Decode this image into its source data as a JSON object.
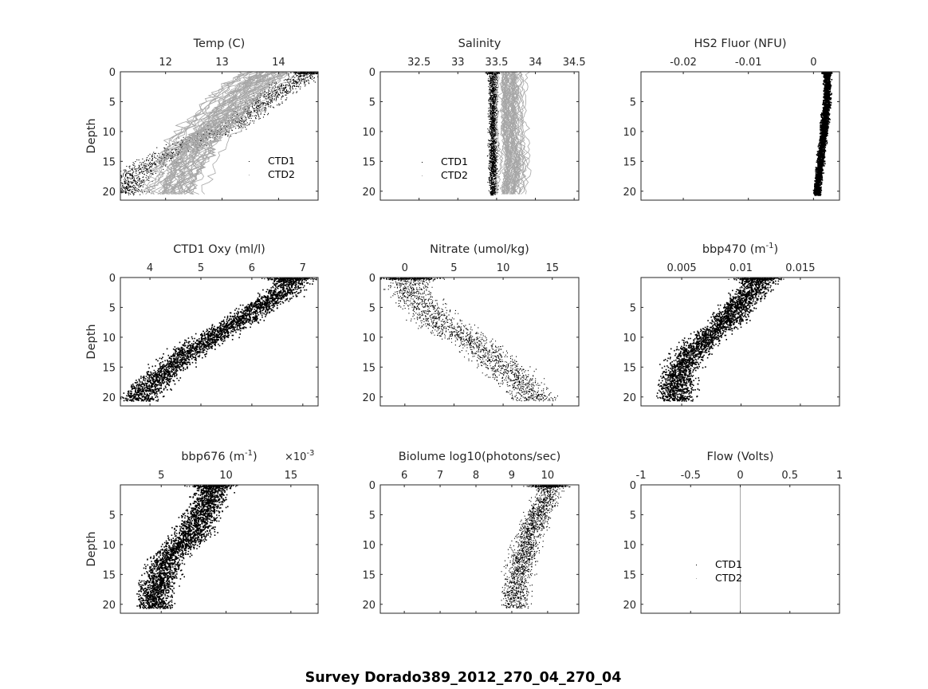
{
  "figure": {
    "suptitle": "Survey Dorado389_2012_270_04_270_04",
    "colors": {
      "ctd1": "#000000",
      "ctd2": "#a6a6a6",
      "axes": "#262626"
    }
  },
  "chart_data": [
    {
      "type": "scatter",
      "title": "Temp (C)",
      "ylabel": "Depth",
      "xlim": [
        11.2,
        14.7
      ],
      "ylim": [
        21.5,
        0
      ],
      "y_reversed": true,
      "xticks": [
        12,
        13,
        14
      ],
      "xtick_labels": [
        "12",
        "13",
        "14"
      ],
      "yticks": [
        0,
        5,
        10,
        15,
        20
      ],
      "ytick_labels": [
        "0",
        "5",
        "10",
        "15",
        "20"
      ],
      "legend": {
        "entries": [
          "CTD1",
          "CTD2"
        ],
        "placement": "lower-right"
      },
      "series": [
        {
          "name": "CTD1",
          "color": "#000000",
          "style": "dots",
          "profile": [
            [
              14.6,
              0
            ],
            [
              14.0,
              3
            ],
            [
              13.7,
              5
            ],
            [
              13.3,
              8
            ],
            [
              12.9,
              10
            ],
            [
              12.4,
              12
            ],
            [
              12.0,
              14
            ],
            [
              11.6,
              16
            ],
            [
              11.4,
              18
            ],
            [
              11.3,
              20
            ]
          ],
          "spread": 0.5
        },
        {
          "name": "CTD2",
          "color": "#a6a6a6",
          "style": "lines",
          "profile": [
            [
              13.8,
              0
            ],
            [
              13.4,
              3
            ],
            [
              13.2,
              5
            ],
            [
              12.9,
              8
            ],
            [
              12.7,
              10
            ],
            [
              12.5,
              12
            ],
            [
              12.4,
              14
            ],
            [
              12.3,
              16
            ],
            [
              12.2,
              18
            ],
            [
              12.1,
              20
            ]
          ],
          "spread": 0.7
        }
      ]
    },
    {
      "type": "scatter",
      "title": "Salinity",
      "ylabel": "",
      "xlim": [
        32.0,
        34.56
      ],
      "ylim": [
        21.5,
        0
      ],
      "y_reversed": true,
      "xticks": [
        32.5,
        33,
        33.5,
        34,
        34.5
      ],
      "xtick_labels": [
        "32.5",
        "33",
        "33.5",
        "34",
        "34.5"
      ],
      "yticks": [
        0,
        5,
        10,
        15,
        20
      ],
      "ytick_labels": [
        "0",
        "5",
        "10",
        "15",
        "20"
      ],
      "legend": {
        "entries": [
          "CTD1",
          "CTD2"
        ],
        "placement": "lower-left"
      },
      "series": [
        {
          "name": "CTD1",
          "color": "#000000",
          "style": "dots",
          "profile": [
            [
              33.45,
              2
            ],
            [
              33.45,
              5
            ],
            [
              33.45,
              10
            ],
            [
              33.45,
              15
            ],
            [
              33.45,
              20
            ]
          ],
          "spread": 0.08
        },
        {
          "name": "CTD2",
          "color": "#a6a6a6",
          "style": "lines",
          "profile": [
            [
              33.7,
              2
            ],
            [
              33.7,
              5
            ],
            [
              33.7,
              10
            ],
            [
              33.75,
              15
            ],
            [
              33.7,
              20
            ]
          ],
          "spread": 0.25
        }
      ]
    },
    {
      "type": "scatter",
      "title": "HS2 Fluor (NFU)",
      "ylabel": "",
      "xlim": [
        -0.0265,
        0.004
      ],
      "ylim": [
        21.5,
        0
      ],
      "y_reversed": true,
      "xticks": [
        -0.02,
        -0.01,
        0
      ],
      "xtick_labels": [
        "-0.02",
        "-0.01",
        "0"
      ],
      "yticks": [
        5,
        10,
        15,
        20
      ],
      "ytick_labels": [
        "5",
        "10",
        "15",
        "20"
      ],
      "series": [
        {
          "name": "CTD1",
          "color": "#000000",
          "style": "dense",
          "profile": [
            [
              0.002,
              0
            ],
            [
              0.002,
              5
            ],
            [
              0.0015,
              10
            ],
            [
              0.001,
              15
            ],
            [
              0.0005,
              20
            ]
          ],
          "spread": 0.0008
        }
      ]
    },
    {
      "type": "scatter",
      "title": "CTD1 Oxy (ml/l)",
      "ylabel": "Depth",
      "xlim": [
        3.42,
        7.3
      ],
      "ylim": [
        21.5,
        0
      ],
      "y_reversed": true,
      "xticks": [
        4,
        5,
        6,
        7
      ],
      "xtick_labels": [
        "4",
        "5",
        "6",
        "7"
      ],
      "yticks": [
        0,
        5,
        10,
        15,
        20
      ],
      "ytick_labels": [
        "0",
        "5",
        "10",
        "15",
        "20"
      ],
      "series": [
        {
          "name": "CTD1",
          "color": "#000000",
          "style": "dense",
          "profile": [
            [
              6.8,
              0
            ],
            [
              6.5,
              3
            ],
            [
              6.1,
              5
            ],
            [
              5.6,
              8
            ],
            [
              5.2,
              10
            ],
            [
              4.8,
              12
            ],
            [
              4.4,
              15
            ],
            [
              4.0,
              18
            ],
            [
              3.8,
              20
            ]
          ],
          "spread": 0.55
        }
      ]
    },
    {
      "type": "scatter",
      "title": "Nitrate (umol/kg)",
      "ylabel": "",
      "xlim": [
        -2.5,
        17.7
      ],
      "ylim": [
        21.5,
        0
      ],
      "y_reversed": true,
      "xticks": [
        0,
        5,
        10,
        15
      ],
      "xtick_labels": [
        "0",
        "5",
        "10",
        "15"
      ],
      "yticks": [
        0,
        5,
        10,
        15,
        20
      ],
      "ytick_labels": [
        "0",
        "5",
        "10",
        "15",
        "20"
      ],
      "series": [
        {
          "name": "CTD1",
          "color": "#000000",
          "style": "dots",
          "profile": [
            [
              0.5,
              0
            ],
            [
              0.5,
              3
            ],
            [
              2,
              5
            ],
            [
              4,
              8
            ],
            [
              6,
              10
            ],
            [
              8,
              12
            ],
            [
              10,
              15
            ],
            [
              12,
              18
            ],
            [
              13,
              20
            ]
          ],
          "spread": 3.5
        }
      ]
    },
    {
      "type": "scatter",
      "title": "bbp470 (m^-1)",
      "ylabel": "",
      "xlim": [
        0.00157,
        0.0183
      ],
      "ylim": [
        21.5,
        0
      ],
      "y_reversed": true,
      "xticks": [
        0.005,
        0.01,
        0.015
      ],
      "xtick_labels": [
        "0.005",
        "0.01",
        "0.015"
      ],
      "yticks": [
        5,
        10,
        15,
        20
      ],
      "ytick_labels": [
        "5",
        "10",
        "15",
        "20"
      ],
      "series": [
        {
          "name": "CTD1",
          "color": "#000000",
          "style": "dense",
          "profile": [
            [
              0.0115,
              0
            ],
            [
              0.0105,
              3
            ],
            [
              0.0095,
              5
            ],
            [
              0.0085,
              8
            ],
            [
              0.007,
              10
            ],
            [
              0.006,
              12
            ],
            [
              0.005,
              15
            ],
            [
              0.0045,
              18
            ],
            [
              0.0045,
              20
            ]
          ],
          "spread": 0.0022
        }
      ]
    },
    {
      "type": "scatter",
      "title": "bbp676 (m^-1)",
      "ylabel": "Depth",
      "xlim": [
        1.85,
        17.1
      ],
      "x_multiplier": "×10^-3",
      "ylim": [
        21.5,
        0
      ],
      "y_reversed": true,
      "xticks": [
        5,
        10,
        15
      ],
      "xtick_labels": [
        "5",
        "10",
        "15"
      ],
      "yticks": [
        5,
        10,
        15,
        20
      ],
      "ytick_labels": [
        "5",
        "10",
        "15",
        "20"
      ],
      "series": [
        {
          "name": "CTD1",
          "color": "#000000",
          "style": "dense",
          "profile": [
            [
              9,
              0
            ],
            [
              8.5,
              3
            ],
            [
              8,
              5
            ],
            [
              7.5,
              8
            ],
            [
              6.5,
              10
            ],
            [
              5.5,
              12
            ],
            [
              5,
              15
            ],
            [
              4.5,
              18
            ],
            [
              4.5,
              20
            ]
          ],
          "spread": 2.0
        }
      ]
    },
    {
      "type": "scatter",
      "title": "Biolume log10(photons/sec)",
      "ylabel": "",
      "xlim": [
        5.33,
        10.87
      ],
      "ylim": [
        21.5,
        0
      ],
      "y_reversed": true,
      "xticks": [
        6,
        7,
        8,
        9,
        10
      ],
      "xtick_labels": [
        "6",
        "7",
        "8",
        "9",
        "10"
      ],
      "yticks": [
        0,
        5,
        10,
        15,
        20
      ],
      "ytick_labels": [
        "0",
        "5",
        "10",
        "15",
        "20"
      ],
      "series": [
        {
          "name": "CTD1",
          "color": "#000000",
          "style": "dots",
          "profile": [
            [
              10.0,
              0
            ],
            [
              9.9,
              3
            ],
            [
              9.7,
              5
            ],
            [
              9.5,
              8
            ],
            [
              9.4,
              10
            ],
            [
              9.3,
              12
            ],
            [
              9.2,
              15
            ],
            [
              9.1,
              18
            ],
            [
              9.1,
              20
            ]
          ],
          "spread": 0.55
        }
      ]
    },
    {
      "type": "line",
      "title": "Flow (Volts)",
      "ylabel": "",
      "xlim": [
        -1,
        1
      ],
      "ylim": [
        21.5,
        0
      ],
      "y_reversed": true,
      "xticks": [
        -1,
        -0.5,
        0,
        0.5,
        1
      ],
      "xtick_labels": [
        "-1",
        "-0.5",
        "0",
        "0.5",
        "1"
      ],
      "yticks": [
        0,
        5,
        10,
        15,
        20
      ],
      "ytick_labels": [
        "0",
        "5",
        "10",
        "15",
        "20"
      ],
      "legend": {
        "entries": [
          "CTD1",
          "CTD2"
        ],
        "placement": "lower-left"
      },
      "series": [
        {
          "name": "CTD2",
          "color": "#a6a6a6",
          "style": "vline",
          "x": 0,
          "y": [
            0,
            21.5
          ]
        }
      ]
    }
  ]
}
